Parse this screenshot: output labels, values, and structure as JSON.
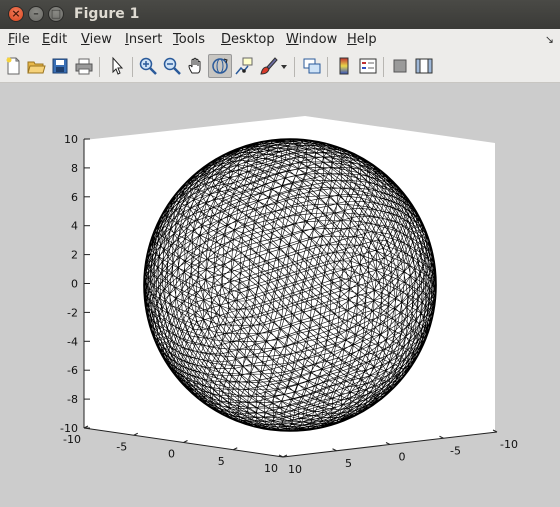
{
  "window": {
    "title": "Figure 1"
  },
  "menubar": {
    "items": [
      {
        "label": "File",
        "u": "F",
        "rest": "ile"
      },
      {
        "label": "Edit",
        "u": "E",
        "rest": "dit"
      },
      {
        "label": "View",
        "u": "V",
        "rest": "iew"
      },
      {
        "label": "Insert",
        "u": "I",
        "rest": "nsert"
      },
      {
        "label": "Tools",
        "u": "T",
        "rest": "ools"
      },
      {
        "label": "Desktop",
        "u": "D",
        "rest": "esktop"
      },
      {
        "label": "Window",
        "u": "W",
        "rest": "indow"
      },
      {
        "label": "Help",
        "u": "H",
        "rest": "elp"
      }
    ],
    "arrow": "↘"
  },
  "toolbar": {
    "icons": [
      "new-figure-icon",
      "open-file-icon",
      "save-icon",
      "print-icon",
      "pointer-icon",
      "zoom-in-icon",
      "zoom-out-icon",
      "pan-icon",
      "rotate-3d-icon",
      "data-cursor-icon",
      "brush-icon",
      "dropdown-arrow-icon",
      "link-plot-icon",
      "colorbar-icon",
      "legend-icon",
      "hide-plot-tools-icon",
      "show-plot-tools-icon"
    ]
  },
  "chart_data": {
    "type": "surface-mesh",
    "description_object": "triangulated sphere",
    "sphere_radius": 10,
    "x_ticks": [
      "-10",
      "-5",
      "0",
      "5",
      "10"
    ],
    "y_ticks": [
      "10",
      "5",
      "0",
      "-5",
      "-10"
    ],
    "z_ticks": [
      "10",
      "8",
      "6",
      "4",
      "2",
      "0",
      "-2",
      "-4",
      "-6",
      "-8",
      "-10"
    ],
    "xlim": [
      -10,
      10
    ],
    "ylim": [
      -10,
      10
    ],
    "zlim": [
      -10,
      10
    ],
    "grid": false,
    "mesh_color": "#000000",
    "background": "#ffffff"
  }
}
